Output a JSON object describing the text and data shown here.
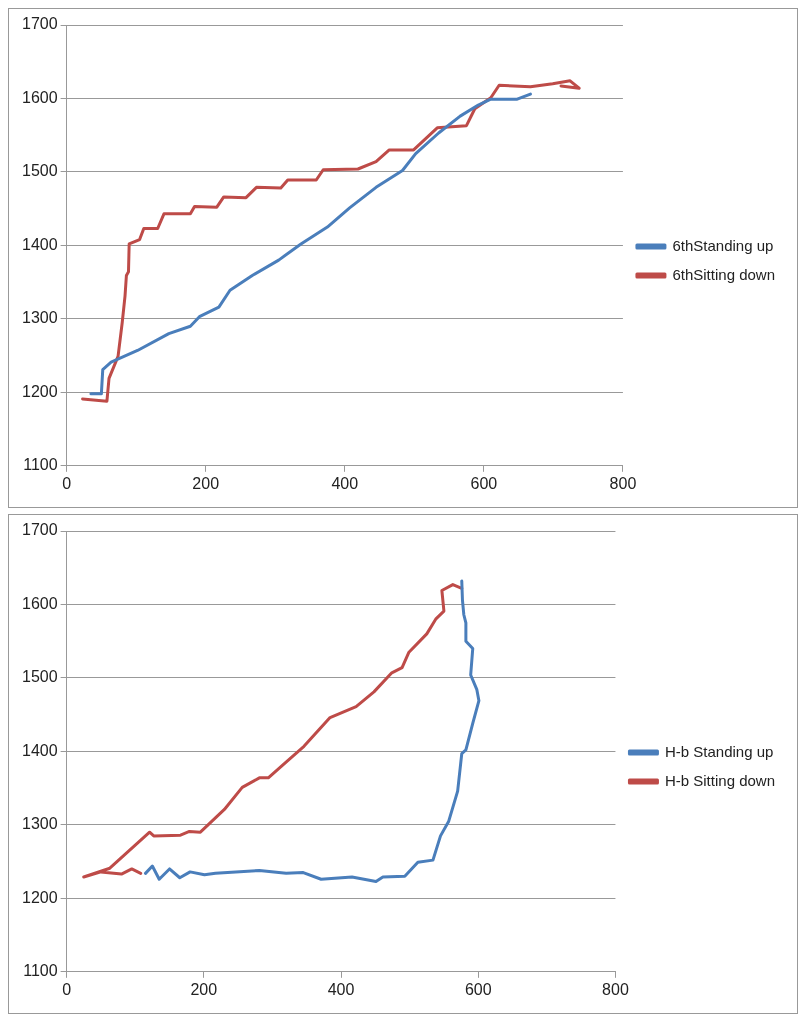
{
  "chart_data": [
    {
      "type": "line",
      "grid": "y",
      "legend": "right",
      "marker": "none",
      "line_style": "solid",
      "xlim": [
        0,
        800
      ],
      "xticks": [
        0,
        200,
        400,
        600,
        800
      ],
      "ylim": [
        1100,
        1700
      ],
      "yticks": [
        1100,
        1200,
        1300,
        1400,
        1500,
        1600,
        1700
      ],
      "series": [
        {
          "name": "6thStanding up",
          "color": "#4a7ebb",
          "x": [
            35,
            50,
            52,
            64,
            102,
            147,
            178,
            191,
            219,
            235,
            267,
            305,
            337,
            375,
            407,
            445,
            483,
            502,
            535,
            566,
            592,
            610,
            648,
            667
          ],
          "values": [
            1198,
            1198,
            1231,
            1241,
            1257,
            1280,
            1290,
            1303,
            1316,
            1339,
            1359,
            1380,
            1402,
            1425,
            1451,
            1479,
            1502,
            1525,
            1553,
            1576,
            1591,
            1599,
            1599,
            1606
          ]
        },
        {
          "name": "6thSitting down",
          "color": "#be4b48",
          "x": [
            23,
            58,
            61,
            74,
            80,
            84,
            86,
            89,
            90,
            105,
            111,
            131,
            140,
            178,
            184,
            216,
            226,
            258,
            273,
            308,
            318,
            359,
            369,
            419,
            445,
            464,
            499,
            533,
            575,
            587,
            610,
            622,
            667,
            699,
            724,
            737,
            711
          ],
          "values": [
            1191,
            1188,
            1219,
            1249,
            1295,
            1331,
            1359,
            1364,
            1402,
            1408,
            1423,
            1423,
            1443,
            1443,
            1453,
            1452,
            1466,
            1465,
            1479,
            1478,
            1489,
            1489,
            1503,
            1504,
            1514,
            1530,
            1530,
            1560,
            1563,
            1586,
            1601,
            1618,
            1616,
            1620,
            1624,
            1614,
            1617
          ]
        }
      ]
    },
    {
      "type": "line",
      "grid": "y",
      "legend": "right",
      "marker": "none",
      "line_style": "solid",
      "xlim": [
        0,
        800
      ],
      "xticks": [
        0,
        200,
        400,
        600,
        800
      ],
      "ylim": [
        1100,
        1700
      ],
      "yticks": [
        1100,
        1200,
        1300,
        1400,
        1500,
        1600,
        1700
      ],
      "series": [
        {
          "name": "H-b Standing up",
          "color": "#4a7ebb",
          "x": [
            115,
            125,
            135,
            150,
            165,
            180,
            201,
            217,
            281,
            320,
            345,
            371,
            416,
            451,
            461,
            493,
            512,
            534,
            545,
            557,
            570,
            576,
            582,
            592,
            601,
            598,
            589,
            592,
            582,
            582,
            579,
            577,
            576
          ],
          "values": [
            1234,
            1244,
            1226,
            1240,
            1228,
            1236,
            1232,
            1234,
            1238,
            1234,
            1235,
            1226,
            1229,
            1223,
            1229,
            1230,
            1249,
            1252,
            1285,
            1305,
            1346,
            1397,
            1402,
            1438,
            1469,
            1484,
            1504,
            1540,
            1550,
            1575,
            1586,
            1606,
            1632
          ]
        },
        {
          "name": "H-b Sitting down",
          "color": "#be4b48",
          "x": [
            108,
            95,
            80,
            50,
            25,
            63,
            121,
            127,
            166,
            179,
            195,
            230,
            256,
            281,
            294,
            346,
            384,
            422,
            448,
            474,
            489,
            499,
            525,
            538,
            550,
            547,
            563,
            576
          ],
          "values": [
            1234,
            1240,
            1233,
            1236,
            1229,
            1241,
            1290,
            1285,
            1286,
            1291,
            1290,
            1321,
            1351,
            1364,
            1364,
            1407,
            1446,
            1461,
            1481,
            1507,
            1514,
            1535,
            1560,
            1580,
            1591,
            1619,
            1627,
            1622
          ]
        }
      ]
    }
  ]
}
